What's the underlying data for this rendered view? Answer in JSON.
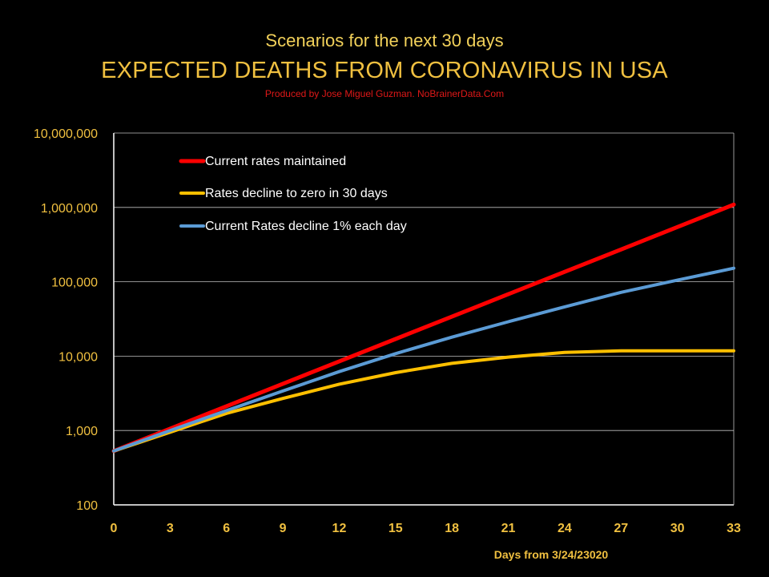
{
  "header": {
    "subtitle": "Scenarios for the next 30 days",
    "title": "EXPECTED DEATHS FROM CORONAVIRUS IN USA",
    "credit": "Produced by Jose Miguel Guzman. NoBrainerData.Com"
  },
  "colors": {
    "background": "#000000",
    "axis_text": "#f0c040",
    "credit": "#e01818",
    "gridline": "#bfbfbf",
    "legend_text": "#ffffff"
  },
  "chart_data": {
    "type": "line",
    "title": "EXPECTED DEATHS FROM CORONAVIRUS IN USA",
    "xlabel": "Days from 3/24/23020",
    "ylabel": "",
    "yscale": "log",
    "xlim": [
      0,
      33
    ],
    "ylim": [
      100,
      10000000
    ],
    "x_ticks": [
      "0",
      "3",
      "6",
      "9",
      "12",
      "15",
      "18",
      "21",
      "24",
      "27",
      "30",
      "33"
    ],
    "y_ticks": [
      "100",
      "1,000",
      "10,000",
      "100,000",
      "1,000,000",
      "10,000,000"
    ],
    "grid": "horizontal",
    "legend": "top-left inside plot",
    "x": [
      0,
      3,
      6,
      9,
      12,
      15,
      18,
      21,
      24,
      27,
      30,
      33
    ],
    "series": [
      {
        "name": "Current rates maintained",
        "color": "#ff0000",
        "values": [
          530,
          1060,
          2120,
          4250,
          8500,
          17000,
          34000,
          68000,
          136000,
          272000,
          544000,
          1090000
        ]
      },
      {
        "name": "Rates decline to zero in 30 days",
        "color": "#ffc000",
        "values": [
          530,
          950,
          1700,
          2700,
          4200,
          6000,
          8000,
          9700,
          11200,
          11800,
          11800,
          11800
        ]
      },
      {
        "name": "Current Rates decline 1% each day",
        "color": "#5b9bd5",
        "values": [
          530,
          1000,
          1850,
          3400,
          6200,
          10800,
          18000,
          29000,
          46000,
          72000,
          105000,
          152000
        ]
      }
    ]
  }
}
